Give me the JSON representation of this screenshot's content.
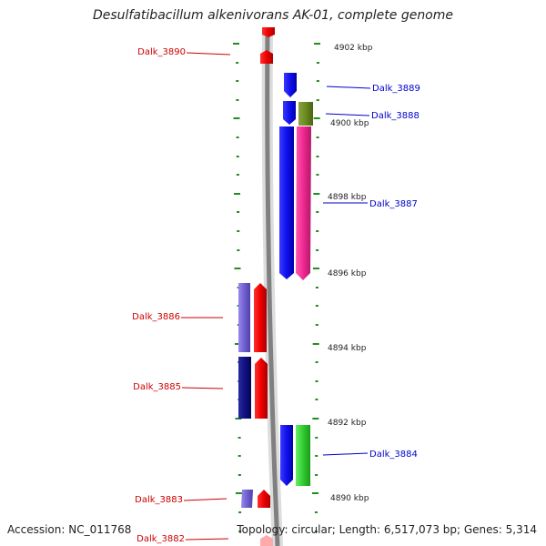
{
  "title": "Desulfatibacillum alkenivorans AK-01, complete genome",
  "footer": {
    "accession": "Accession: NC_011768",
    "topology": "Topology: circular; Length: 6,517,073 bp; Genes: 5,314"
  },
  "colors": {
    "minus_strand_label": "#cc0000",
    "plus_strand_label": "#0000cc",
    "backbone": "#888888",
    "tick": "#228b22"
  },
  "scale_labels": [
    "4902 kbp",
    "4900 kbp",
    "4898 kbp",
    "4896 kbp",
    "4894 kbp",
    "4892 kbp",
    "4890 kbp"
  ],
  "genes_left": [
    {
      "label": "Dalk_3890"
    },
    {
      "label": "Dalk_3886"
    },
    {
      "label": "Dalk_3885"
    },
    {
      "label": "Dalk_3883"
    },
    {
      "label": "Dalk_3882"
    }
  ],
  "genes_right": [
    {
      "label": "Dalk_3889"
    },
    {
      "label": "Dalk_3888"
    },
    {
      "label": "Dalk_3887"
    },
    {
      "label": "Dalk_3884"
    }
  ]
}
